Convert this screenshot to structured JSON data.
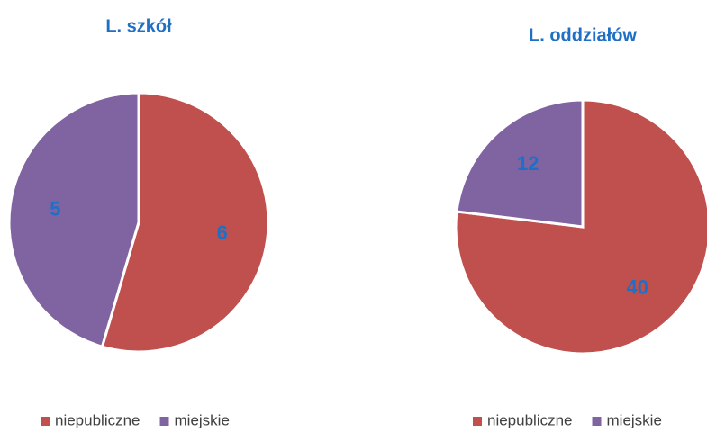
{
  "chart_data": [
    {
      "type": "pie",
      "title": "L. szkół",
      "categories": [
        "niepubliczne",
        "miejskie"
      ],
      "values": [
        6,
        5
      ],
      "colors": [
        "#c0504d",
        "#8064a2"
      ]
    },
    {
      "type": "pie",
      "title": "L. oddziałów",
      "categories": [
        "niepubliczne",
        "miejskie"
      ],
      "values": [
        40,
        12
      ],
      "colors": [
        "#c0504d",
        "#8064a2"
      ]
    }
  ]
}
